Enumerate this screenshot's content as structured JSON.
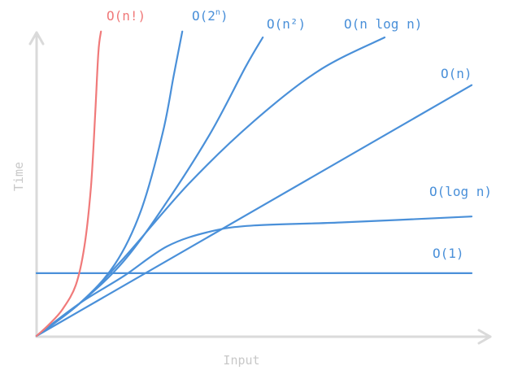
{
  "chart_data": {
    "type": "line",
    "title": "",
    "xlabel": "Input",
    "ylabel": "Time",
    "grid": false,
    "legend": "none",
    "colors": {
      "axis": "#dadada",
      "axis_text": "#c8c8c8",
      "blue": "#4a90d9",
      "red": "#f07a7a"
    },
    "series": [
      {
        "name": "O(n!)",
        "color": "#f07a7a",
        "values": [
          [
            0,
            0
          ],
          [
            0.03,
            0.04
          ],
          [
            0.06,
            0.09
          ],
          [
            0.09,
            0.17
          ],
          [
            0.11,
            0.3
          ],
          [
            0.125,
            0.5
          ],
          [
            0.135,
            0.75
          ],
          [
            0.142,
            0.95
          ],
          [
            0.148,
            1.02
          ]
        ]
      },
      {
        "name": "O(2n)",
        "color": "#4a90d9",
        "values": [
          [
            0,
            0
          ],
          [
            0.1,
            0.11
          ],
          [
            0.18,
            0.24
          ],
          [
            0.24,
            0.42
          ],
          [
            0.29,
            0.68
          ],
          [
            0.315,
            0.87
          ],
          [
            0.335,
            1.02
          ]
        ]
      },
      {
        "name": "O(n2)",
        "color": "#4a90d9",
        "values": [
          [
            0,
            0
          ],
          [
            0.1,
            0.11
          ],
          [
            0.2,
            0.25
          ],
          [
            0.3,
            0.45
          ],
          [
            0.4,
            0.68
          ],
          [
            0.48,
            0.9
          ],
          [
            0.52,
            1.0
          ]
        ]
      },
      {
        "name": "O(n log n)",
        "color": "#4a90d9",
        "values": [
          [
            0,
            0
          ],
          [
            0.1,
            0.11
          ],
          [
            0.2,
            0.26
          ],
          [
            0.35,
            0.51
          ],
          [
            0.5,
            0.72
          ],
          [
            0.65,
            0.89
          ],
          [
            0.8,
            1.0
          ]
        ]
      },
      {
        "name": "O(n)",
        "color": "#4a90d9",
        "values": [
          [
            0,
            0
          ],
          [
            1,
            0.84
          ]
        ]
      },
      {
        "name": "O(log n)",
        "color": "#4a90d9",
        "values": [
          [
            0,
            0
          ],
          [
            0.1,
            0.11
          ],
          [
            0.2,
            0.2
          ],
          [
            0.3,
            0.3
          ],
          [
            0.4,
            0.35
          ],
          [
            0.5,
            0.37
          ],
          [
            0.7,
            0.38
          ],
          [
            1,
            0.4
          ]
        ]
      },
      {
        "name": "O(1)",
        "color": "#4a90d9",
        "values": [
          [
            0,
            0.21
          ],
          [
            1,
            0.21
          ]
        ]
      }
    ],
    "labels": {
      "fact": "O(n!)",
      "exp_base": "O(2",
      "exp_sup": "n",
      "exp_close": ")",
      "quad": "O(n²)",
      "nlogn": "O(n log n)",
      "lin": "O(n)",
      "log": "O(log n)",
      "const": "O(1)"
    }
  }
}
